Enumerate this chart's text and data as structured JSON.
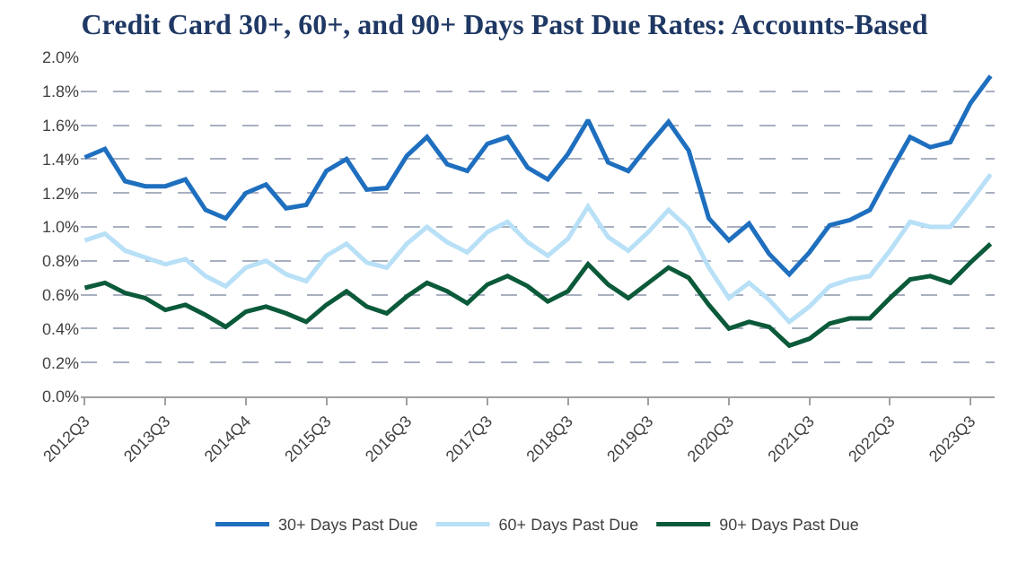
{
  "chart_data": {
    "type": "line",
    "title": "Credit Card 30+, 60+, and 90+ Days Past Due Rates: Accounts-Based",
    "categories": [
      "2012Q3",
      null,
      null,
      null,
      "2013Q3",
      null,
      null,
      null,
      "2014Q4",
      null,
      null,
      null,
      "2015Q3",
      null,
      null,
      null,
      "2016Q3",
      null,
      null,
      null,
      "2017Q3",
      null,
      null,
      null,
      "2018Q3",
      null,
      null,
      null,
      "2019Q3",
      null,
      null,
      null,
      "2020Q3",
      null,
      null,
      null,
      "2021Q3",
      null,
      null,
      null,
      "2022Q3",
      null,
      null,
      null,
      "2023Q3",
      null
    ],
    "series": [
      {
        "name": "30+ Days Past Due",
        "color": "#1f6fbf",
        "values": [
          1.41,
          1.46,
          1.27,
          1.24,
          1.24,
          1.28,
          1.1,
          1.05,
          1.2,
          1.25,
          1.11,
          1.13,
          1.33,
          1.4,
          1.22,
          1.23,
          1.42,
          1.53,
          1.37,
          1.33,
          1.49,
          1.53,
          1.35,
          1.28,
          1.43,
          1.63,
          1.38,
          1.33,
          1.48,
          1.62,
          1.45,
          1.05,
          0.92,
          1.02,
          0.84,
          0.72,
          0.85,
          1.01,
          1.04,
          1.1,
          1.32,
          1.53,
          1.47,
          1.5,
          1.73,
          1.89
        ]
      },
      {
        "name": "60+ Days Past Due",
        "color": "#b8e0f7",
        "values": [
          0.92,
          0.96,
          0.86,
          0.82,
          0.78,
          0.81,
          0.71,
          0.65,
          0.76,
          0.8,
          0.72,
          0.68,
          0.83,
          0.9,
          0.79,
          0.76,
          0.9,
          1.0,
          0.91,
          0.85,
          0.97,
          1.03,
          0.91,
          0.83,
          0.93,
          1.12,
          0.94,
          0.86,
          0.97,
          1.1,
          0.99,
          0.76,
          0.58,
          0.67,
          0.57,
          0.44,
          0.53,
          0.65,
          0.69,
          0.71,
          0.86,
          1.03,
          1.0,
          1.0,
          1.15,
          1.31
        ]
      },
      {
        "name": "90+ Days Past Due",
        "color": "#0b5a3a",
        "values": [
          0.64,
          0.67,
          0.61,
          0.58,
          0.51,
          0.54,
          0.48,
          0.41,
          0.5,
          0.53,
          0.49,
          0.44,
          0.54,
          0.62,
          0.53,
          0.49,
          0.59,
          0.67,
          0.62,
          0.55,
          0.66,
          0.71,
          0.65,
          0.56,
          0.62,
          0.78,
          0.66,
          0.58,
          0.67,
          0.76,
          0.7,
          0.54,
          0.4,
          0.44,
          0.41,
          0.3,
          0.34,
          0.43,
          0.46,
          0.46,
          0.58,
          0.69,
          0.71,
          0.67,
          0.79,
          0.9
        ]
      }
    ],
    "ylim": [
      0,
      2.0
    ],
    "yticks": [
      {
        "value": 0,
        "label": "0.0%"
      },
      {
        "value": 0.2,
        "label": "0.2%"
      },
      {
        "value": 0.4,
        "label": "0.4%"
      },
      {
        "value": 0.6,
        "label": "0.6%"
      },
      {
        "value": 0.8,
        "label": "0.8%"
      },
      {
        "value": 1.0,
        "label": "1.0%"
      },
      {
        "value": 1.2,
        "label": "1.2%"
      },
      {
        "value": 1.4,
        "label": "1.4%"
      },
      {
        "value": 1.6,
        "label": "1.6%"
      },
      {
        "value": 1.8,
        "label": "1.8%"
      },
      {
        "value": 2.0,
        "label": "2.0%"
      }
    ],
    "grid": "y",
    "legend": "bottom",
    "marker": "none",
    "line_style": "solid"
  }
}
